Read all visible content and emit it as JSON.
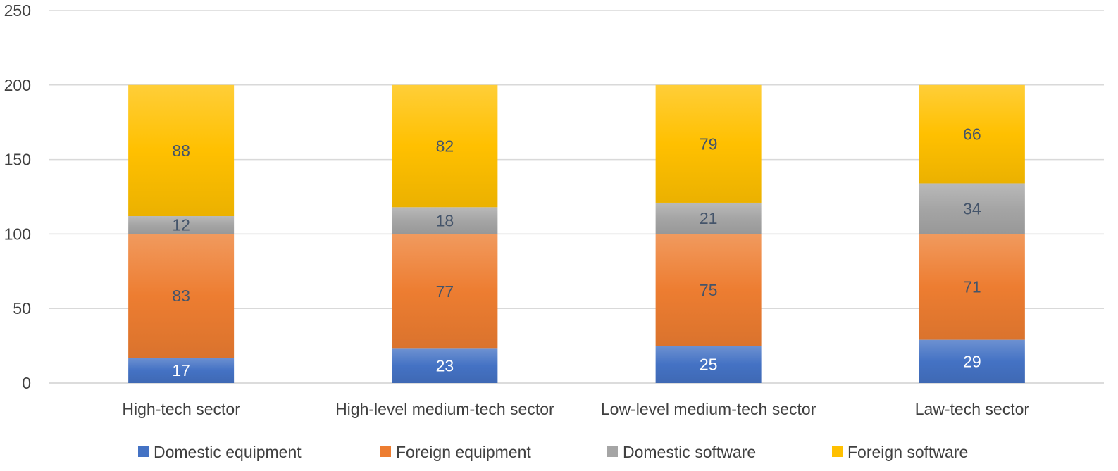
{
  "chart_data": {
    "type": "bar",
    "stacked": true,
    "categories": [
      "High-tech sector",
      "High-level medium-tech sector",
      "Low-level medium-tech sector",
      "Law-tech sector"
    ],
    "series": [
      {
        "name": "Domestic equipment",
        "values": [
          17,
          23,
          25,
          29
        ],
        "color": "#4472C4",
        "label_color": "#ffffff"
      },
      {
        "name": "Foreign equipment",
        "values": [
          83,
          77,
          75,
          71
        ],
        "color": "#ED7D31",
        "label_color": "#44546A"
      },
      {
        "name": "Domestic software",
        "values": [
          12,
          18,
          21,
          34
        ],
        "color": "#A5A5A5",
        "label_color": "#44546A"
      },
      {
        "name": "Foreign software",
        "values": [
          88,
          82,
          79,
          66
        ],
        "color": "#FFC000",
        "label_color": "#44546A"
      }
    ],
    "ylim": [
      0,
      250
    ],
    "yticks": [
      0,
      50,
      100,
      150,
      200,
      250
    ],
    "grid": true,
    "legend_position": "bottom"
  }
}
